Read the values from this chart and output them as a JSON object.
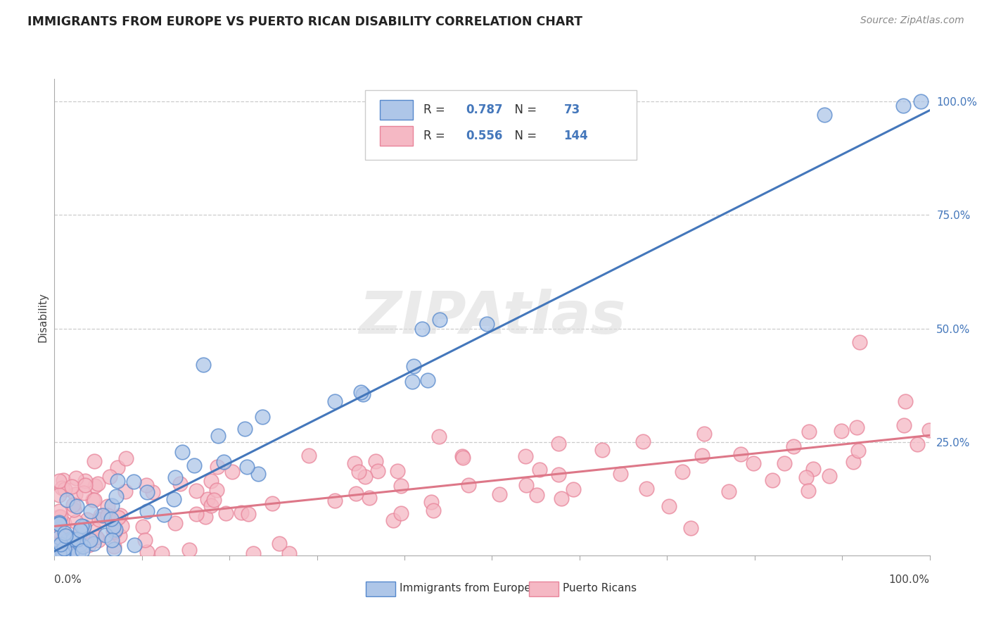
{
  "title": "IMMIGRANTS FROM EUROPE VS PUERTO RICAN DISABILITY CORRELATION CHART",
  "source": "Source: ZipAtlas.com",
  "ylabel": "Disability",
  "blue_R": 0.787,
  "blue_N": 73,
  "pink_R": 0.556,
  "pink_N": 144,
  "blue_color": "#AEC6E8",
  "pink_color": "#F5B8C4",
  "blue_edge_color": "#5588CC",
  "pink_edge_color": "#E8849A",
  "blue_line_color": "#4477BB",
  "pink_line_color": "#DD7788",
  "legend_label_blue": "Immigrants from Europe",
  "legend_label_pink": "Puerto Ricans",
  "watermark": "ZIPAtlas",
  "text_color_blue": "#4477BB",
  "background_color": "#FFFFFF",
  "blue_slope": 0.97,
  "blue_intercept": 0.01,
  "pink_slope": 0.2,
  "pink_intercept": 0.065
}
